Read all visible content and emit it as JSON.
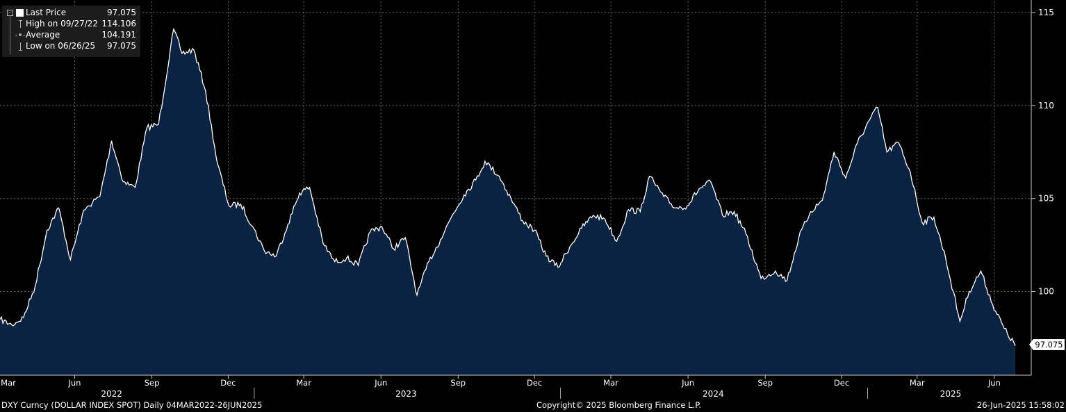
{
  "legend": {
    "last_price_label": "Last Price",
    "last_price_value": "97.075",
    "high_label": "High on 09/27/22",
    "high_value": "114.106",
    "average_label": "Average",
    "average_value": "104.191",
    "low_label": "Low on 06/26/25",
    "low_value": "97.075"
  },
  "price_tag": "97.075",
  "footer": {
    "security": "DXY Curncy (DOLLAR INDEX SPOT)  Daily 04MAR2022-26JUN2025",
    "copyright": "Copyright© 2025 Bloomberg Finance L.P.",
    "timestamp": "26-Jun-2025 15:58:02"
  },
  "colors": {
    "background": "#000000",
    "area_fill": "#0a2340",
    "line": "#ffffff",
    "grid": "#666666"
  },
  "chart_data": {
    "type": "area",
    "series": [
      {
        "name": "Last Price",
        "x": [
          "2022-03-04",
          "2022-03-18",
          "2022-04-01",
          "2022-04-15",
          "2022-04-29",
          "2022-05-13",
          "2022-05-27",
          "2022-06-10",
          "2022-06-17",
          "2022-07-01",
          "2022-07-15",
          "2022-07-29",
          "2022-08-12",
          "2022-08-26",
          "2022-09-09",
          "2022-09-27",
          "2022-10-07",
          "2022-10-21",
          "2022-11-04",
          "2022-11-18",
          "2022-12-02",
          "2022-12-16",
          "2022-12-30",
          "2023-01-13",
          "2023-01-27",
          "2023-02-10",
          "2023-02-24",
          "2023-03-08",
          "2023-03-24",
          "2023-04-07",
          "2023-04-21",
          "2023-05-05",
          "2023-05-19",
          "2023-06-02",
          "2023-06-16",
          "2023-06-30",
          "2023-07-14",
          "2023-07-28",
          "2023-08-11",
          "2023-08-25",
          "2023-09-08",
          "2023-09-22",
          "2023-10-03",
          "2023-10-20",
          "2023-11-03",
          "2023-11-17",
          "2023-12-01",
          "2023-12-15",
          "2023-12-29",
          "2024-01-12",
          "2024-01-26",
          "2024-02-09",
          "2024-02-23",
          "2024-03-08",
          "2024-03-22",
          "2024-04-05",
          "2024-04-16",
          "2024-05-03",
          "2024-05-17",
          "2024-05-31",
          "2024-06-14",
          "2024-06-28",
          "2024-07-12",
          "2024-07-26",
          "2024-08-09",
          "2024-08-27",
          "2024-09-13",
          "2024-09-27",
          "2024-10-11",
          "2024-10-25",
          "2024-11-08",
          "2024-11-22",
          "2024-12-06",
          "2024-12-20",
          "2025-01-03",
          "2025-01-13",
          "2025-01-24",
          "2025-02-07",
          "2025-02-21",
          "2025-03-07",
          "2025-03-21",
          "2025-04-04",
          "2025-04-21",
          "2025-05-02",
          "2025-05-16",
          "2025-05-30",
          "2025-06-13",
          "2025-06-26"
        ],
        "values": [
          98.5,
          98.2,
          98.6,
          100.3,
          103.3,
          104.5,
          101.7,
          104.1,
          104.6,
          105.1,
          108.1,
          105.9,
          105.6,
          108.8,
          109.0,
          114.106,
          112.8,
          113.0,
          110.8,
          106.9,
          104.6,
          104.7,
          103.5,
          102.2,
          101.9,
          103.6,
          105.3,
          105.6,
          102.6,
          101.6,
          101.8,
          101.4,
          103.2,
          103.5,
          102.3,
          102.9,
          99.8,
          101.6,
          102.8,
          104.1,
          105.2,
          106.0,
          107.0,
          106.2,
          105.0,
          103.8,
          103.3,
          101.9,
          101.3,
          102.4,
          103.4,
          104.1,
          103.9,
          102.7,
          104.4,
          104.3,
          106.2,
          105.1,
          104.5,
          104.6,
          105.5,
          105.9,
          104.1,
          104.3,
          103.1,
          100.7,
          101.1,
          100.6,
          102.9,
          104.3,
          104.9,
          107.5,
          106.1,
          108.0,
          109.2,
          109.9,
          107.5,
          108.0,
          106.4,
          103.7,
          104.0,
          101.8,
          98.4,
          100.0,
          101.1,
          99.3,
          98.0,
          97.075
        ]
      }
    ],
    "x_range": [
      "2022-03-04",
      "2025-06-26"
    ],
    "ylim": [
      95.5,
      115.6
    ],
    "y_ticks": [
      100,
      105,
      110,
      115
    ],
    "x_ticks": [
      {
        "date": "2022-03-01",
        "label": "Mar"
      },
      {
        "date": "2022-06-01",
        "label": "Jun"
      },
      {
        "date": "2022-09-01",
        "label": "Sep"
      },
      {
        "date": "2022-12-01",
        "label": "Dec"
      },
      {
        "date": "2023-03-01",
        "label": "Mar"
      },
      {
        "date": "2023-06-01",
        "label": "Jun"
      },
      {
        "date": "2023-09-01",
        "label": "Sep"
      },
      {
        "date": "2023-12-01",
        "label": "Dec"
      },
      {
        "date": "2024-03-01",
        "label": "Mar"
      },
      {
        "date": "2024-06-01",
        "label": "Jun"
      },
      {
        "date": "2024-09-01",
        "label": "Sep"
      },
      {
        "date": "2024-12-01",
        "label": "Dec"
      },
      {
        "date": "2025-03-01",
        "label": "Mar"
      },
      {
        "date": "2025-06-01",
        "label": "Jun"
      }
    ],
    "years": [
      {
        "label": "2022",
        "center": "2022-07-15"
      },
      {
        "label": "2023",
        "center": "2023-07-01"
      },
      {
        "label": "2024",
        "center": "2024-07-01"
      },
      {
        "label": "2025",
        "center": "2025-04-10"
      }
    ],
    "year_boundaries": [
      "2023-01-01",
      "2024-01-01",
      "2025-01-01"
    ],
    "grid": true,
    "y_axis_side": "right"
  }
}
